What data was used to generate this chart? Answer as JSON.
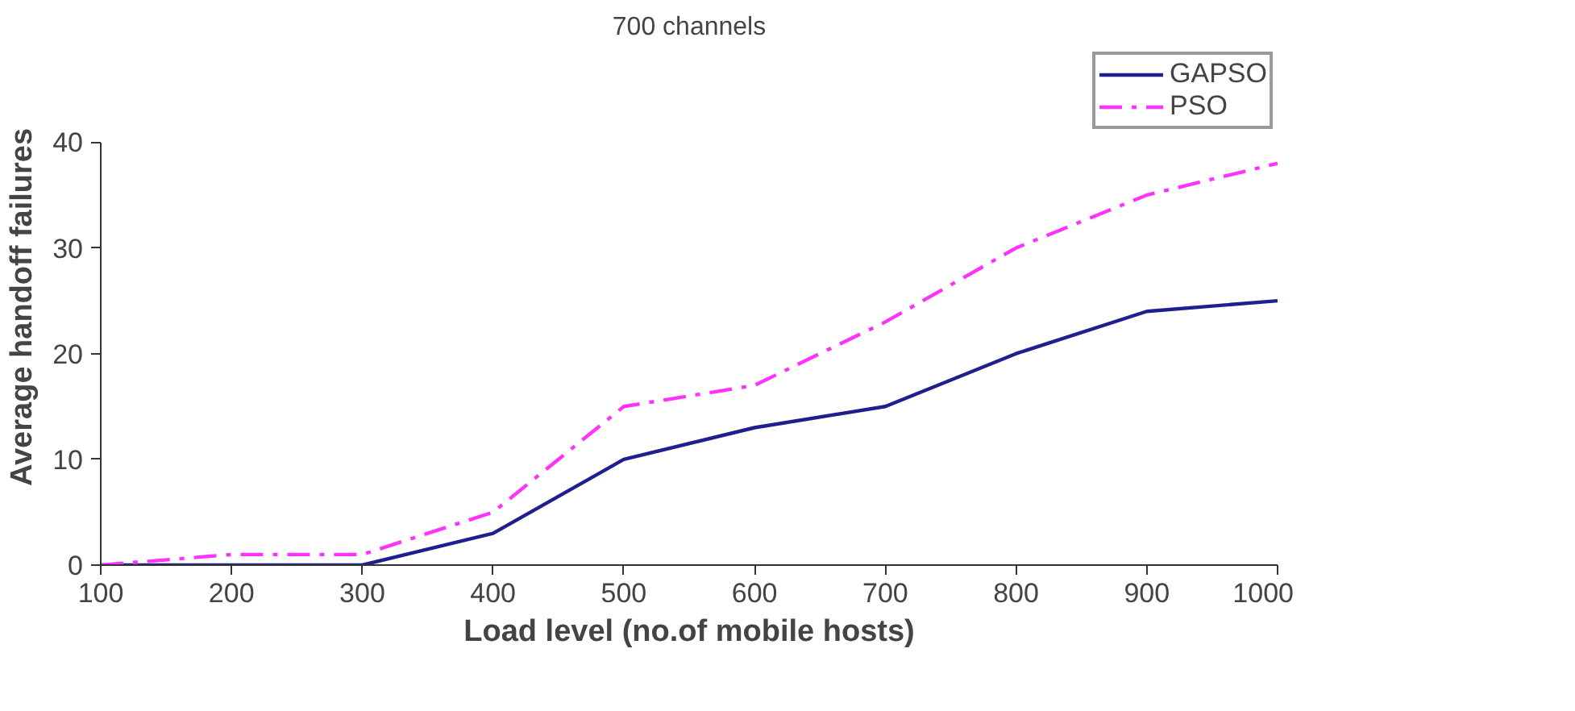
{
  "chart_data": {
    "type": "line",
    "title": "700 channels",
    "xlabel": "Load level (no.of mobile hosts)",
    "ylabel": "Average handoff failures",
    "x": [
      100,
      200,
      300,
      400,
      500,
      600,
      700,
      800,
      900,
      1000
    ],
    "series": [
      {
        "name": "GAPSO",
        "color": "#1f1f8f",
        "line_style": "solid",
        "values": [
          0,
          0,
          0,
          3,
          10,
          13,
          15,
          20,
          24,
          25
        ]
      },
      {
        "name": "PSO",
        "color": "#ff33ff",
        "line_style": "dashed",
        "values": [
          0,
          1,
          1,
          5,
          15,
          17,
          23,
          30,
          35,
          38
        ]
      }
    ],
    "xlim": [
      100,
      1000
    ],
    "ylim": [
      0,
      40
    ],
    "xticks": [
      100,
      200,
      300,
      400,
      500,
      600,
      700,
      800,
      900,
      1000
    ],
    "yticks": [
      0,
      10,
      20,
      30,
      40
    ],
    "grid": false,
    "legend": "top right",
    "marker": "none"
  }
}
